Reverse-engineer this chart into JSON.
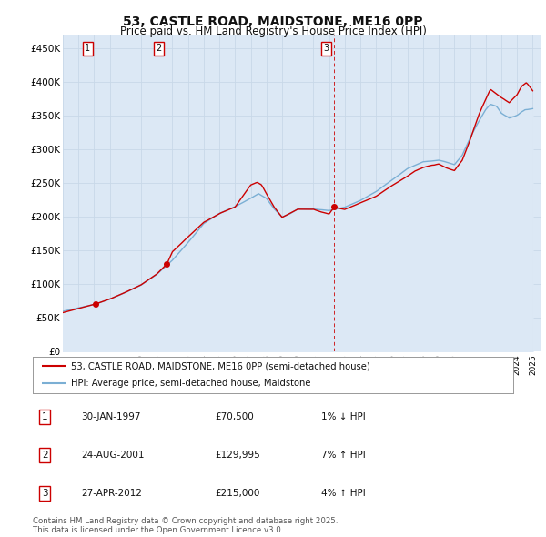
{
  "title": "53, CASTLE ROAD, MAIDSTONE, ME16 0PP",
  "subtitle": "Price paid vs. HM Land Registry's House Price Index (HPI)",
  "ylabel_ticks": [
    "£0",
    "£50K",
    "£100K",
    "£150K",
    "£200K",
    "£250K",
    "£300K",
    "£350K",
    "£400K",
    "£450K"
  ],
  "ytick_values": [
    0,
    50000,
    100000,
    150000,
    200000,
    250000,
    300000,
    350000,
    400000,
    450000
  ],
  "ylim": [
    0,
    470000
  ],
  "sale_color": "#cc0000",
  "hpi_color": "#7bafd4",
  "plot_bg_color": "#dce8f5",
  "grid_color": "#c8d8e8",
  "vline_color": "#cc0000",
  "sale_prices": [
    70500,
    129995,
    215000
  ],
  "sale_year_nums": [
    1997.08,
    2001.65,
    2012.33
  ],
  "sale_info": [
    {
      "label": "1",
      "date": "30-JAN-1997",
      "price": "£70,500",
      "pct": "1%",
      "dir": "↓"
    },
    {
      "label": "2",
      "date": "24-AUG-2001",
      "price": "£129,995",
      "pct": "7%",
      "dir": "↑"
    },
    {
      "label": "3",
      "date": "27-APR-2012",
      "price": "£215,000",
      "pct": "4%",
      "dir": "↑"
    }
  ],
  "legend_line1": "53, CASTLE ROAD, MAIDSTONE, ME16 0PP (semi-detached house)",
  "legend_line2": "HPI: Average price, semi-detached house, Maidstone",
  "footnote": "Contains HM Land Registry data © Crown copyright and database right 2025.\nThis data is licensed under the Open Government Licence v3.0.",
  "bg_color": "#ffffff",
  "title_fontsize": 10,
  "subtitle_fontsize": 8.5
}
